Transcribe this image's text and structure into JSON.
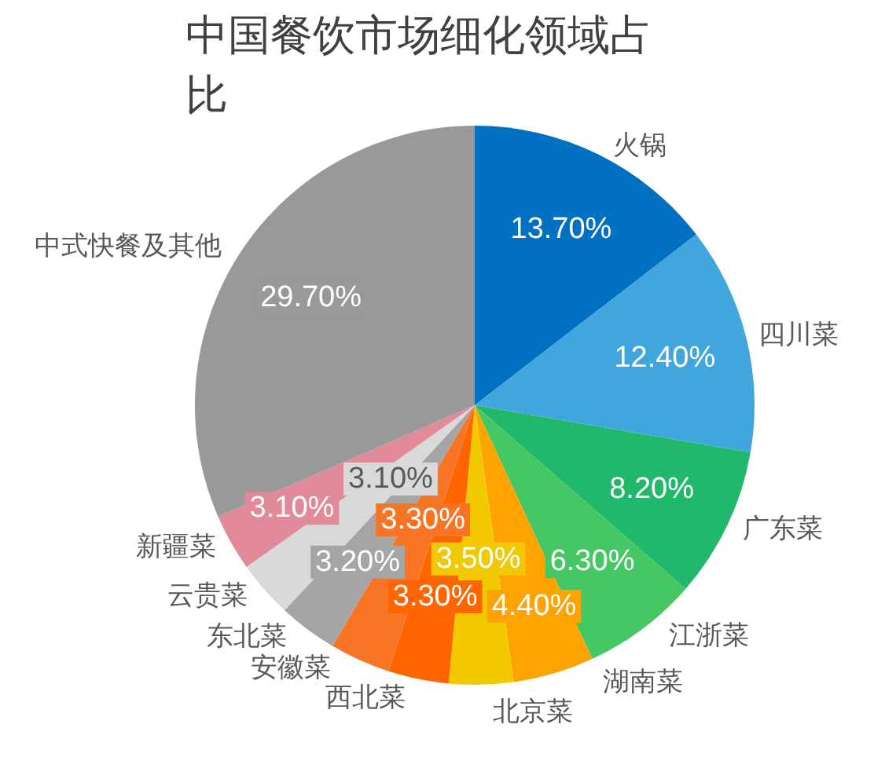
{
  "chart_data": {
    "type": "pie",
    "title": "中国餐饮市场细化领域占比",
    "categories": [
      "火锅",
      "四川菜",
      "广东菜",
      "江浙菜",
      "湖南菜",
      "北京菜",
      "西北菜",
      "安徽菜",
      "东北菜",
      "云贵菜",
      "新疆菜",
      "中式快餐及其他"
    ],
    "values": [
      13.7,
      12.4,
      8.2,
      6.3,
      4.4,
      3.5,
      3.3,
      3.3,
      3.2,
      3.1,
      3.1,
      29.7
    ],
    "value_labels": [
      "13.70%",
      "12.40%",
      "8.20%",
      "6.30%",
      "4.40%",
      "3.50%",
      "3.30%",
      "3.30%",
      "3.20%",
      "3.10%",
      "3.10%",
      "29.70%"
    ],
    "colors": [
      "#0070c0",
      "#41a6de",
      "#22b86c",
      "#45c764",
      "#ffa300",
      "#f2c900",
      "#ff6600",
      "#f97526",
      "#a5a5a5",
      "#d9d9d9",
      "#e08a9a",
      "#999999"
    ]
  }
}
